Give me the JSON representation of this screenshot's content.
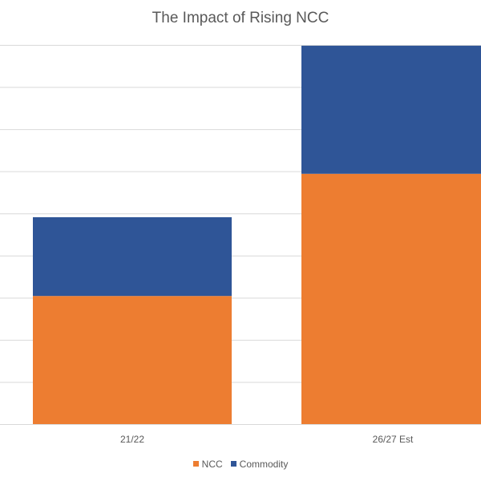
{
  "chart_data": {
    "type": "bar",
    "stacked": true,
    "title": "The Impact of Rising NCC",
    "categories": [
      "21/22",
      "26/27 Est"
    ],
    "series": [
      {
        "name": "NCC",
        "values": [
          3.05,
          5.95
        ],
        "color": "#ED7D31"
      },
      {
        "name": "Commodity",
        "values": [
          1.87,
          3.04
        ],
        "color": "#2F5597"
      }
    ],
    "xlabel": "",
    "ylabel": "",
    "ylim": [
      0,
      9
    ],
    "gridlines": [
      1,
      2,
      3,
      4,
      5,
      6,
      7,
      8,
      9
    ],
    "grid": true,
    "legend": "bottom"
  }
}
